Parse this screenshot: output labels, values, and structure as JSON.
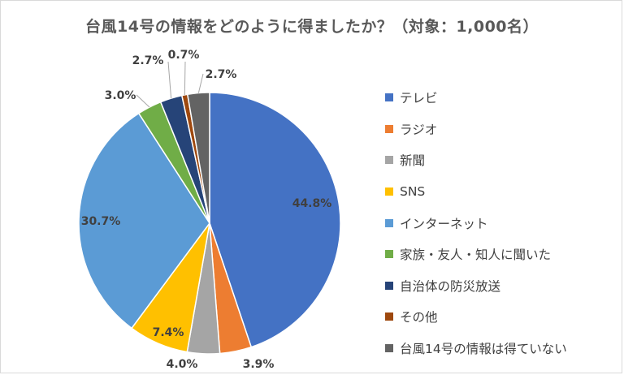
{
  "chart_data": {
    "type": "pie",
    "title": "台風14号の情報をどのように得ましたか？（対象：1,000名）",
    "legend_position": "right",
    "slices": [
      {
        "label": "テレビ",
        "value": 44.8,
        "display": "44.8%",
        "color": "#4472C4"
      },
      {
        "label": "ラジオ",
        "value": 3.9,
        "display": "3.9%",
        "color": "#ED7D31"
      },
      {
        "label": "新聞",
        "value": 4.0,
        "display": "4.0%",
        "color": "#A5A5A5"
      },
      {
        "label": "SNS",
        "value": 7.4,
        "display": "7.4%",
        "color": "#FFC000"
      },
      {
        "label": "インターネット",
        "value": 30.7,
        "display": "30.7%",
        "color": "#5B9BD5"
      },
      {
        "label": "家族・友人・知人に聞いた",
        "value": 3.0,
        "display": "3.0%",
        "color": "#70AD47"
      },
      {
        "label": "自治体の防災放送",
        "value": 2.7,
        "display": "2.7%",
        "color": "#264478"
      },
      {
        "label": "その他",
        "value": 0.7,
        "display": "0.7%",
        "color": "#9E480E"
      },
      {
        "label": "台風14号の情報は得ていない",
        "value": 2.7,
        "display": "2.7%",
        "color": "#636363"
      }
    ]
  }
}
